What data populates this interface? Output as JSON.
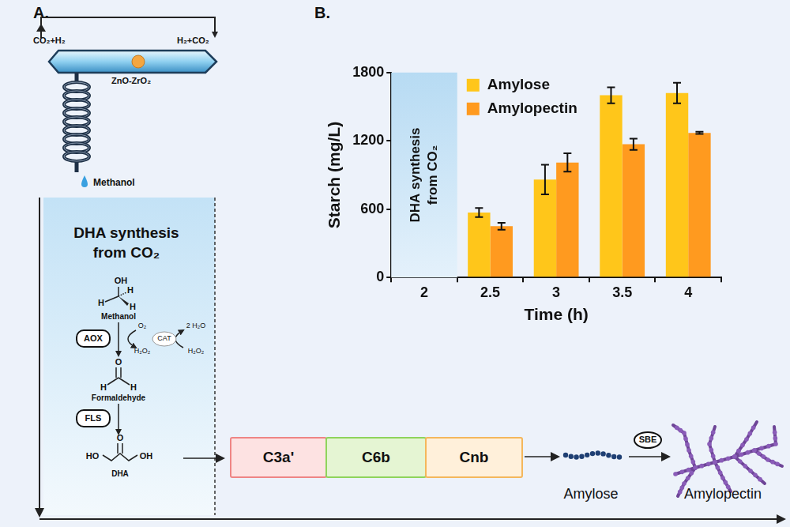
{
  "panel_labels": [
    "A.",
    "B."
  ],
  "diagram": {
    "reactor": {
      "outlet": "CO₂+H₂",
      "inlet": "H₂+CO₂",
      "catalyst": "ZnO-ZrO₂",
      "product": "Methanol"
    },
    "module_title": [
      "DHA synthesis",
      "from CO₂"
    ],
    "methanol": {
      "atoms": [
        "OH",
        "H",
        "H",
        "H"
      ],
      "name": "Methanol"
    },
    "aox": "AOX",
    "cat": {
      "label": "CAT",
      "o2": "O₂",
      "water": "2 H₂O",
      "h2o2_left": "H₂O₂",
      "h2o2_right": "H₂O₂"
    },
    "formaldehyde": {
      "atoms": [
        "O",
        "H",
        "H"
      ],
      "name": "Formaldehyde"
    },
    "fls": "FLS",
    "dha": {
      "atoms": [
        "HO",
        "O",
        "OH"
      ],
      "name": "DHA"
    },
    "modules": [
      {
        "label": "C3a'",
        "fill": "#fde2e2",
        "stroke": "#ee8585"
      },
      {
        "label": "C6b",
        "fill": "#e5f5d3",
        "stroke": "#8fd45c"
      },
      {
        "label": "Cnb",
        "fill": "#fff0da",
        "stroke": "#f4b75c"
      }
    ],
    "amylose": "Amylose",
    "sbe": "SBE",
    "amylopectin": "Amylopectin"
  },
  "chart_data": {
    "type": "bar",
    "x_label": "Time (h)",
    "y_label": "Starch (mg/L)",
    "categories": [
      "2",
      "2.5",
      "3",
      "3.5",
      "4"
    ],
    "series": [
      {
        "name": "Amylose",
        "color": "#ffc61a",
        "values": [
          null,
          570,
          860,
          1600,
          1620
        ],
        "errors": [
          null,
          40,
          130,
          70,
          90
        ]
      },
      {
        "name": "Amylopectin",
        "color": "#ff9a1f",
        "values": [
          null,
          450,
          1010,
          1170,
          1270
        ],
        "errors": [
          null,
          30,
          80,
          50,
          10
        ]
      }
    ],
    "ylim": [
      0,
      1800
    ],
    "yticks": [
      0,
      600,
      1200,
      1800
    ],
    "grid": false,
    "legend": "upper left",
    "annotations": [
      {
        "text": [
          "DHA synthesis",
          "from CO₂"
        ],
        "category": "2"
      }
    ]
  }
}
